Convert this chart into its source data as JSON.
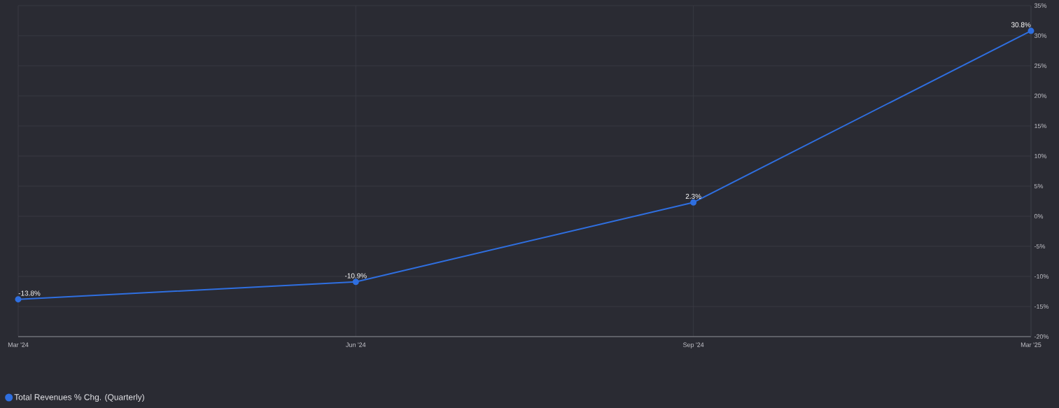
{
  "chart_data": {
    "type": "line",
    "categories": [
      "Mar '24",
      "Jun '24",
      "Sep '24",
      "Mar '25"
    ],
    "series": [
      {
        "name": "Total Revenues % Chg. (Quarterly)",
        "color": "#2F6FE0",
        "values": [
          -13.8,
          -10.9,
          2.3,
          30.8
        ],
        "value_labels": [
          "-13.8%",
          "-10.9%",
          "2.3%",
          "30.8%"
        ]
      }
    ],
    "ylim": [
      -20,
      35
    ],
    "yticks": [
      {
        "value": -20,
        "label": "-20%"
      },
      {
        "value": -15,
        "label": "-15%"
      },
      {
        "value": -10,
        "label": "-10%"
      },
      {
        "value": -5,
        "label": "-5%"
      },
      {
        "value": 0,
        "label": "0%"
      },
      {
        "value": 5,
        "label": "5%"
      },
      {
        "value": 10,
        "label": "10%"
      },
      {
        "value": 15,
        "label": "15%"
      },
      {
        "value": 20,
        "label": "20%"
      },
      {
        "value": 25,
        "label": "25%"
      },
      {
        "value": 30,
        "label": "30%"
      },
      {
        "value": 35,
        "label": "35%"
      }
    ],
    "grid": true,
    "legend": "bottom left",
    "marker": "circle",
    "line_style": "solid"
  }
}
